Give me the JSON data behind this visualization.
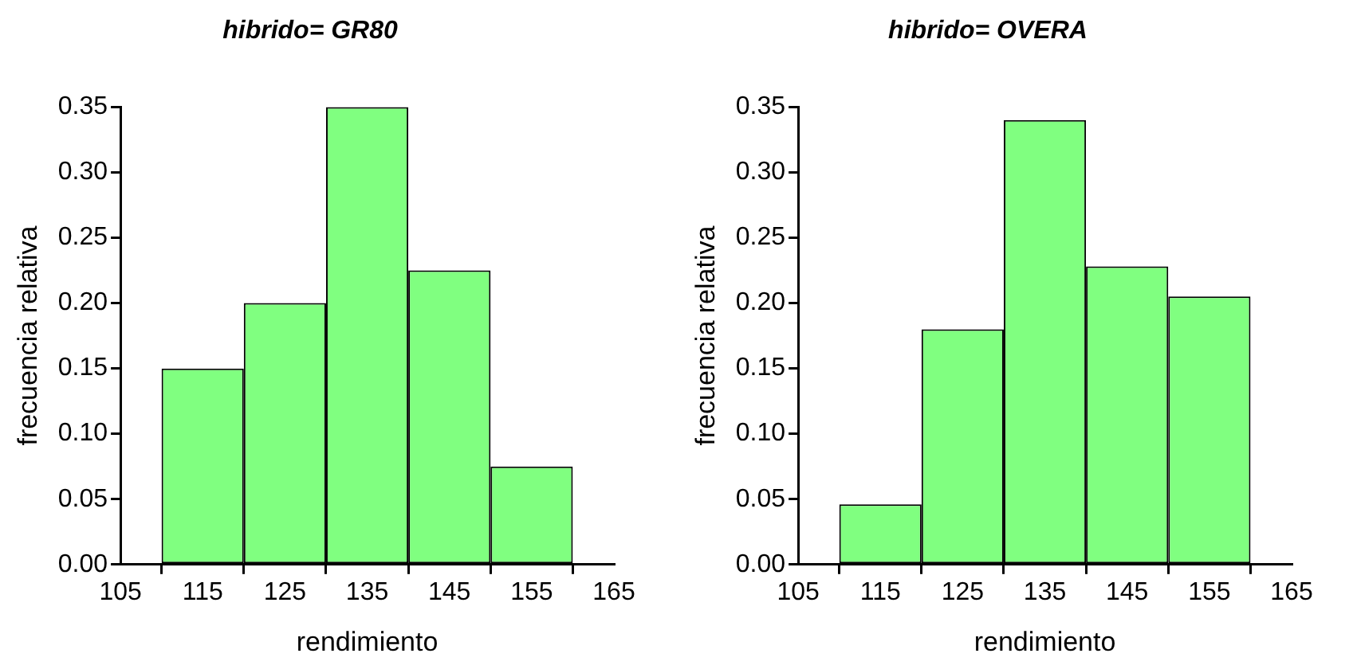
{
  "chart_data": [
    {
      "type": "histogram",
      "title": "hibrido= GR80",
      "xlabel": "rendimiento",
      "ylabel": "frecuencia relativa",
      "bins": [
        110,
        120,
        130,
        140,
        150,
        160
      ],
      "values": [
        0.15,
        0.2,
        0.35,
        0.225,
        0.075
      ],
      "color": "#80ff80",
      "xlim": [
        105,
        165
      ],
      "xticks": [
        105,
        115,
        125,
        135,
        145,
        155,
        165
      ],
      "ylim": [
        0,
        0.35
      ],
      "yticks": [
        {
          "value": 0,
          "label": "0.00"
        },
        {
          "value": 0.05,
          "label": "0.05"
        },
        {
          "value": 0.1,
          "label": "0.10"
        },
        {
          "value": 0.15,
          "label": "0.15"
        },
        {
          "value": 0.2,
          "label": "0.20"
        },
        {
          "value": 0.25,
          "label": "0.25"
        },
        {
          "value": 0.3,
          "label": "0.30"
        },
        {
          "value": 0.35,
          "label": "0.35"
        }
      ]
    },
    {
      "type": "histogram",
      "title": "hibrido= OVERA",
      "xlabel": "rendimiento",
      "ylabel": "frecuencia relativa",
      "bins": [
        110,
        120,
        130,
        140,
        150,
        160
      ],
      "values": [
        0.046,
        0.18,
        0.34,
        0.228,
        0.205
      ],
      "color": "#80ff80",
      "xlim": [
        105,
        165
      ],
      "xticks": [
        105,
        115,
        125,
        135,
        145,
        155,
        165
      ],
      "ylim": [
        0,
        0.35
      ],
      "yticks": [
        {
          "value": 0,
          "label": "0.00"
        },
        {
          "value": 0.05,
          "label": "0.05"
        },
        {
          "value": 0.1,
          "label": "0.10"
        },
        {
          "value": 0.15,
          "label": "0.15"
        },
        {
          "value": 0.2,
          "label": "0.20"
        },
        {
          "value": 0.25,
          "label": "0.25"
        },
        {
          "value": 0.3,
          "label": "0.30"
        },
        {
          "value": 0.35,
          "label": "0.35"
        }
      ]
    }
  ]
}
